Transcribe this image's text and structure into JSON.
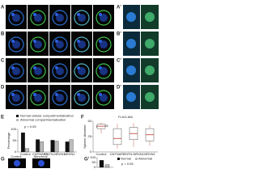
{
  "rows": [
    {
      "letter": "A",
      "label": "Control",
      "zoom_letter": "A'"
    },
    {
      "letter": "B",
      "label": "hiPS",
      "zoom_letter": "B'"
    },
    {
      "letter": "C",
      "label": "CNTNAP2",
      "zoom_letter": "C'"
    },
    {
      "letter": "D",
      "label": "LETM1",
      "zoom_letter": "D'"
    }
  ],
  "E": {
    "type": "bar",
    "letter": "E",
    "y_label": "Percentage",
    "annotation": "p < 0.05",
    "categories": [
      "Control",
      "CNTNAP2",
      "CNTN-NRXN1",
      "NRXN1"
    ],
    "series": [
      {
        "name": "Normal cellular compartmentalization",
        "color": "#111111",
        "values": [
          85,
          55,
          52,
          45
        ]
      },
      {
        "name": "Abnormal compartmentalization",
        "color": "#bbbbbb",
        "values": [
          15,
          45,
          48,
          55
        ]
      }
    ],
    "ylim": [
      0,
      100
    ],
    "yticks": [
      0,
      50,
      100
    ]
  },
  "F": {
    "type": "box",
    "letter": "F",
    "title": "FLAG-MA",
    "y_label": "Sphere diameter",
    "annotation": "p < 0.05",
    "categories": [
      "Control",
      "CNTNAP2",
      "CNTN-NRXN1",
      "NRXN1"
    ],
    "color": "#c0392b",
    "boxes": [
      {
        "min": 30,
        "q1": 38,
        "median": 42,
        "q3": 45,
        "max": 48
      },
      {
        "min": 5,
        "q1": 12,
        "median": 22,
        "q3": 38,
        "max": 46
      },
      {
        "min": 8,
        "q1": 20,
        "median": 30,
        "q3": 40,
        "max": 47
      },
      {
        "min": 10,
        "q1": 18,
        "median": 28,
        "q3": 38,
        "max": 44
      }
    ],
    "ylim": [
      0,
      50
    ],
    "yticks": [
      0,
      25,
      50
    ]
  },
  "G": {
    "letter": "G",
    "images": [
      "Control",
      "Abnormal"
    ]
  },
  "G2": {
    "type": "bar",
    "letter": "G'",
    "annotation": "p < 0.05",
    "series": [
      {
        "name": "Normal",
        "color": "#111111",
        "values": [
          72
        ]
      },
      {
        "name": "Abnormal",
        "color": "#bbbbbb",
        "values": [
          28
        ]
      }
    ],
    "ylim": [
      0,
      100
    ],
    "yticks": [
      0,
      50,
      100
    ]
  }
}
